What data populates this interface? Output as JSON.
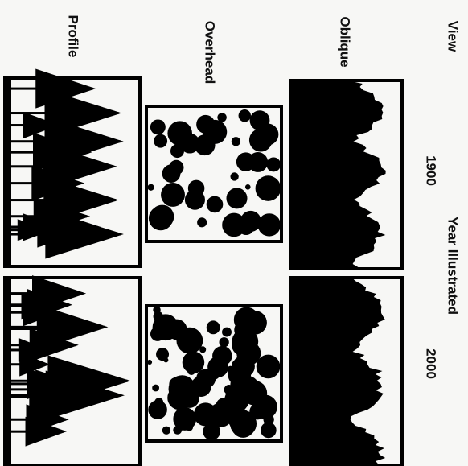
{
  "header": {
    "view": "View",
    "year_label": "Year Illustrated",
    "years": [
      "1900",
      "2000"
    ]
  },
  "rows": [
    {
      "label": "Oblique"
    },
    {
      "label": "Overhead"
    },
    {
      "label": "Profile"
    }
  ]
}
